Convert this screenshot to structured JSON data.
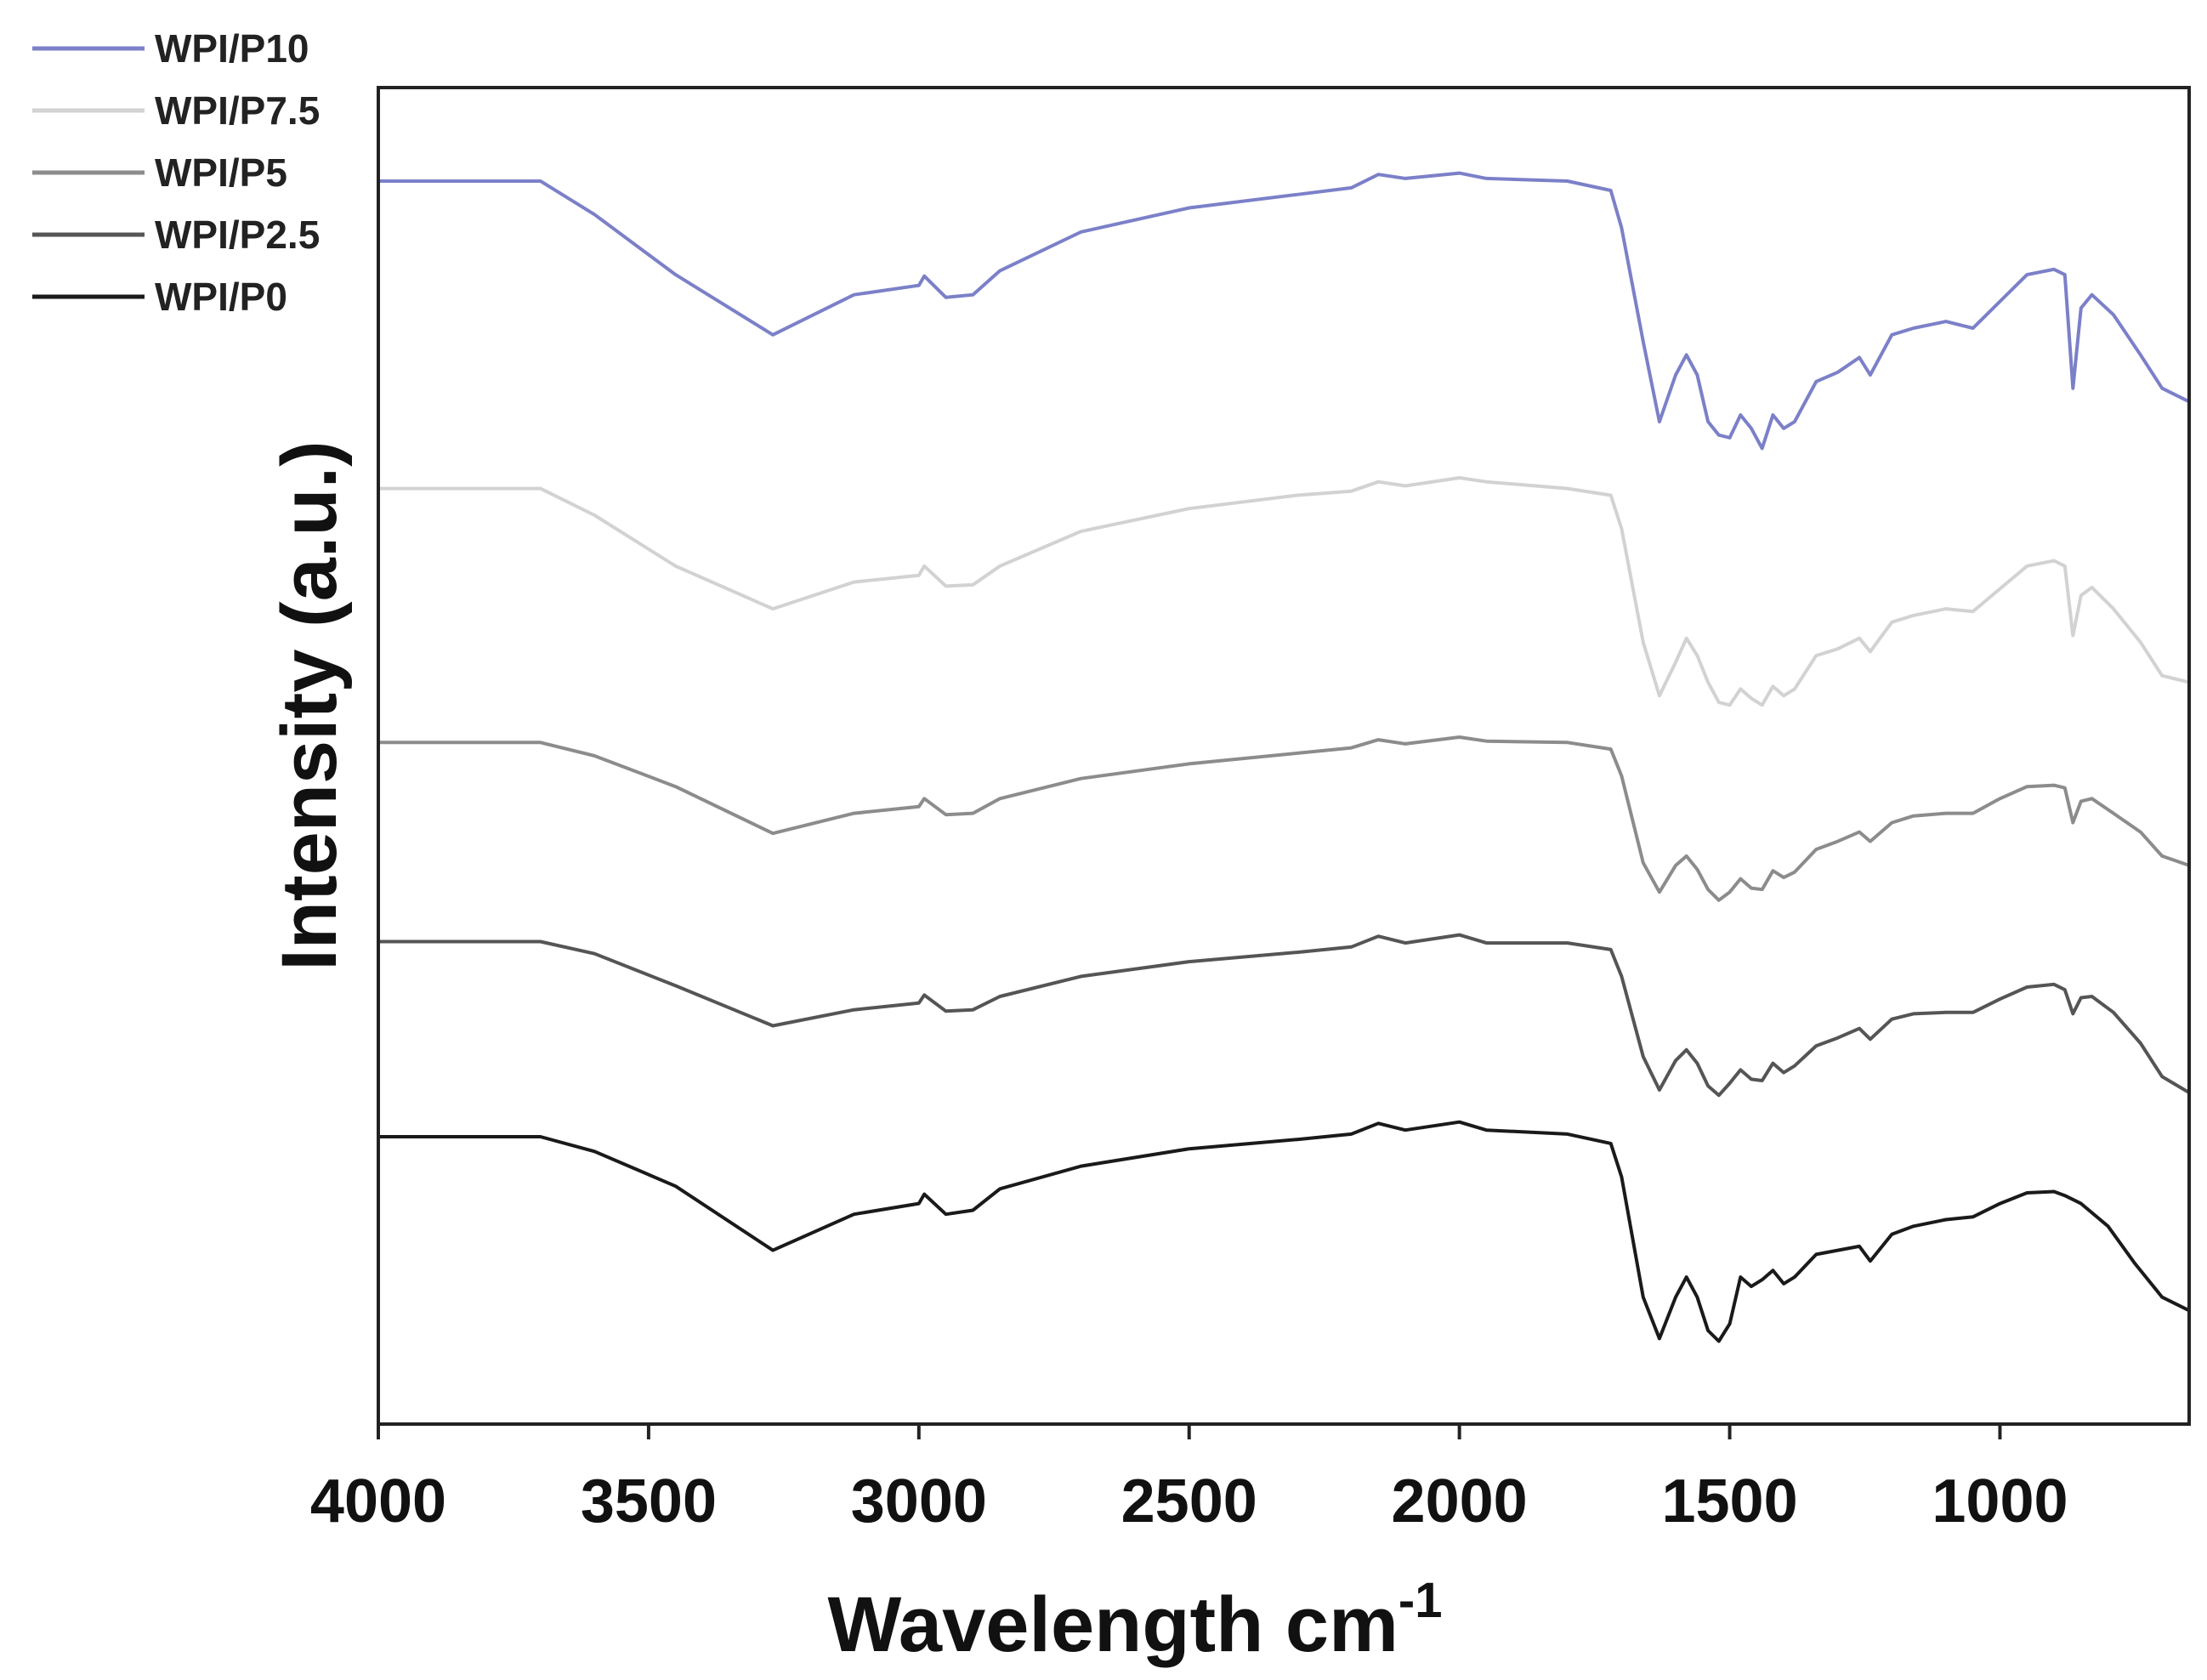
{
  "chart_data": {
    "type": "line",
    "title": "",
    "xlabel": "Wavelength cm",
    "xlabel_superscript": "-1",
    "ylabel": "Intensity (a.u.)",
    "xlim": [
      4000,
      650
    ],
    "x_reversed": true,
    "ylim": [
      0,
      100
    ],
    "grid": false,
    "legend_position": "top-left-outside",
    "xticks": [
      4000,
      3500,
      3000,
      2500,
      2000,
      1500,
      1000
    ],
    "xtick_labels": [
      "4000",
      "3500",
      "3000",
      "2500",
      "2000",
      "1500",
      "1000"
    ],
    "series": [
      {
        "name": "WPI/P10",
        "color": "#7b80c8",
        "points": [
          [
            4000,
            93.0
          ],
          [
            3700,
            93.0
          ],
          [
            3600,
            90.5
          ],
          [
            3450,
            86.0
          ],
          [
            3270,
            81.5
          ],
          [
            3120,
            84.5
          ],
          [
            3000,
            85.2
          ],
          [
            2990,
            85.9
          ],
          [
            2950,
            84.3
          ],
          [
            2900,
            84.5
          ],
          [
            2850,
            86.3
          ],
          [
            2700,
            89.2
          ],
          [
            2500,
            91.0
          ],
          [
            2300,
            92.0
          ],
          [
            2200,
            92.5
          ],
          [
            2150,
            93.5
          ],
          [
            2100,
            93.2
          ],
          [
            2000,
            93.6
          ],
          [
            1950,
            93.2
          ],
          [
            1800,
            93.0
          ],
          [
            1720,
            92.3
          ],
          [
            1700,
            89.5
          ],
          [
            1660,
            81.0
          ],
          [
            1630,
            75.0
          ],
          [
            1600,
            78.5
          ],
          [
            1580,
            80.0
          ],
          [
            1560,
            78.5
          ],
          [
            1540,
            75.0
          ],
          [
            1520,
            74.0
          ],
          [
            1500,
            73.8
          ],
          [
            1480,
            75.5
          ],
          [
            1460,
            74.5
          ],
          [
            1440,
            73.0
          ],
          [
            1420,
            75.5
          ],
          [
            1400,
            74.5
          ],
          [
            1380,
            75.0
          ],
          [
            1340,
            78.0
          ],
          [
            1300,
            78.7
          ],
          [
            1260,
            79.8
          ],
          [
            1240,
            78.5
          ],
          [
            1200,
            81.5
          ],
          [
            1160,
            82.0
          ],
          [
            1100,
            82.5
          ],
          [
            1050,
            82.0
          ],
          [
            1000,
            84.0
          ],
          [
            950,
            86.0
          ],
          [
            900,
            86.4
          ],
          [
            880,
            86.0
          ],
          [
            865,
            77.5
          ],
          [
            850,
            83.5
          ],
          [
            830,
            84.5
          ],
          [
            790,
            83.0
          ],
          [
            740,
            80.0
          ],
          [
            700,
            77.5
          ],
          [
            650,
            76.5
          ]
        ]
      },
      {
        "name": "WPI/P7.5",
        "color": "#d2d2d2",
        "points": [
          [
            4000,
            70.0
          ],
          [
            3700,
            70.0
          ],
          [
            3600,
            68.0
          ],
          [
            3450,
            64.2
          ],
          [
            3270,
            61.0
          ],
          [
            3120,
            63.0
          ],
          [
            3000,
            63.5
          ],
          [
            2990,
            64.2
          ],
          [
            2950,
            62.7
          ],
          [
            2900,
            62.8
          ],
          [
            2850,
            64.2
          ],
          [
            2700,
            66.8
          ],
          [
            2500,
            68.5
          ],
          [
            2300,
            69.5
          ],
          [
            2200,
            69.8
          ],
          [
            2150,
            70.5
          ],
          [
            2100,
            70.2
          ],
          [
            2000,
            70.8
          ],
          [
            1950,
            70.5
          ],
          [
            1800,
            70.0
          ],
          [
            1720,
            69.5
          ],
          [
            1700,
            67.0
          ],
          [
            1660,
            58.5
          ],
          [
            1630,
            54.5
          ],
          [
            1600,
            57.0
          ],
          [
            1580,
            58.8
          ],
          [
            1560,
            57.5
          ],
          [
            1540,
            55.5
          ],
          [
            1520,
            54.0
          ],
          [
            1500,
            53.8
          ],
          [
            1480,
            55.0
          ],
          [
            1460,
            54.3
          ],
          [
            1440,
            53.8
          ],
          [
            1420,
            55.2
          ],
          [
            1400,
            54.5
          ],
          [
            1380,
            55.0
          ],
          [
            1340,
            57.5
          ],
          [
            1300,
            58.0
          ],
          [
            1260,
            58.8
          ],
          [
            1240,
            57.8
          ],
          [
            1200,
            60.0
          ],
          [
            1160,
            60.5
          ],
          [
            1100,
            61.0
          ],
          [
            1050,
            60.8
          ],
          [
            1000,
            62.5
          ],
          [
            950,
            64.2
          ],
          [
            900,
            64.6
          ],
          [
            880,
            64.2
          ],
          [
            865,
            59.0
          ],
          [
            850,
            62.0
          ],
          [
            830,
            62.6
          ],
          [
            790,
            61.0
          ],
          [
            740,
            58.5
          ],
          [
            700,
            56.0
          ],
          [
            650,
            55.5
          ]
        ]
      },
      {
        "name": "WPI/P5",
        "color": "#8c8c8c",
        "points": [
          [
            4000,
            51.0
          ],
          [
            3700,
            51.0
          ],
          [
            3600,
            50.0
          ],
          [
            3450,
            47.7
          ],
          [
            3270,
            44.2
          ],
          [
            3120,
            45.7
          ],
          [
            3000,
            46.2
          ],
          [
            2990,
            46.8
          ],
          [
            2950,
            45.6
          ],
          [
            2900,
            45.7
          ],
          [
            2850,
            46.8
          ],
          [
            2700,
            48.3
          ],
          [
            2500,
            49.4
          ],
          [
            2300,
            50.2
          ],
          [
            2200,
            50.6
          ],
          [
            2150,
            51.2
          ],
          [
            2100,
            50.9
          ],
          [
            2000,
            51.4
          ],
          [
            1950,
            51.1
          ],
          [
            1800,
            51.0
          ],
          [
            1720,
            50.5
          ],
          [
            1700,
            48.5
          ],
          [
            1660,
            42.0
          ],
          [
            1630,
            39.8
          ],
          [
            1600,
            41.8
          ],
          [
            1580,
            42.5
          ],
          [
            1560,
            41.5
          ],
          [
            1540,
            40.0
          ],
          [
            1520,
            39.2
          ],
          [
            1500,
            39.8
          ],
          [
            1480,
            40.8
          ],
          [
            1460,
            40.1
          ],
          [
            1440,
            40.0
          ],
          [
            1420,
            41.4
          ],
          [
            1400,
            40.9
          ],
          [
            1380,
            41.3
          ],
          [
            1340,
            43.0
          ],
          [
            1300,
            43.6
          ],
          [
            1260,
            44.3
          ],
          [
            1240,
            43.6
          ],
          [
            1200,
            45.0
          ],
          [
            1160,
            45.5
          ],
          [
            1100,
            45.7
          ],
          [
            1050,
            45.7
          ],
          [
            1000,
            46.8
          ],
          [
            950,
            47.7
          ],
          [
            900,
            47.8
          ],
          [
            880,
            47.6
          ],
          [
            865,
            45.0
          ],
          [
            850,
            46.6
          ],
          [
            830,
            46.8
          ],
          [
            790,
            45.7
          ],
          [
            740,
            44.3
          ],
          [
            700,
            42.5
          ],
          [
            650,
            41.8
          ]
        ]
      },
      {
        "name": "WPI/P2.5",
        "color": "#555555",
        "points": [
          [
            4000,
            36.1
          ],
          [
            3700,
            36.1
          ],
          [
            3600,
            35.2
          ],
          [
            3450,
            32.8
          ],
          [
            3270,
            29.8
          ],
          [
            3120,
            31.0
          ],
          [
            3000,
            31.5
          ],
          [
            2990,
            32.1
          ],
          [
            2950,
            30.9
          ],
          [
            2900,
            31.0
          ],
          [
            2850,
            32.0
          ],
          [
            2700,
            33.5
          ],
          [
            2500,
            34.6
          ],
          [
            2300,
            35.3
          ],
          [
            2200,
            35.7
          ],
          [
            2150,
            36.5
          ],
          [
            2100,
            36.0
          ],
          [
            2000,
            36.6
          ],
          [
            1950,
            36.0
          ],
          [
            1800,
            36.0
          ],
          [
            1720,
            35.5
          ],
          [
            1700,
            33.5
          ],
          [
            1660,
            27.5
          ],
          [
            1630,
            25.0
          ],
          [
            1600,
            27.2
          ],
          [
            1580,
            28.0
          ],
          [
            1560,
            27.0
          ],
          [
            1540,
            25.3
          ],
          [
            1520,
            24.6
          ],
          [
            1500,
            25.5
          ],
          [
            1480,
            26.5
          ],
          [
            1460,
            25.8
          ],
          [
            1440,
            25.7
          ],
          [
            1420,
            27.0
          ],
          [
            1400,
            26.3
          ],
          [
            1380,
            26.8
          ],
          [
            1340,
            28.3
          ],
          [
            1300,
            28.9
          ],
          [
            1260,
            29.6
          ],
          [
            1240,
            28.8
          ],
          [
            1200,
            30.3
          ],
          [
            1160,
            30.7
          ],
          [
            1100,
            30.8
          ],
          [
            1050,
            30.8
          ],
          [
            1000,
            31.8
          ],
          [
            950,
            32.7
          ],
          [
            900,
            32.9
          ],
          [
            880,
            32.5
          ],
          [
            865,
            30.7
          ],
          [
            850,
            31.9
          ],
          [
            830,
            32.0
          ],
          [
            790,
            30.8
          ],
          [
            740,
            28.5
          ],
          [
            700,
            26.0
          ],
          [
            650,
            24.8
          ]
        ]
      },
      {
        "name": "WPI/P0",
        "color": "#1a1a1a",
        "points": [
          [
            4000,
            21.5
          ],
          [
            3700,
            21.5
          ],
          [
            3600,
            20.4
          ],
          [
            3450,
            17.8
          ],
          [
            3270,
            13.0
          ],
          [
            3120,
            15.7
          ],
          [
            3000,
            16.5
          ],
          [
            2990,
            17.2
          ],
          [
            2950,
            15.7
          ],
          [
            2900,
            16.0
          ],
          [
            2850,
            17.6
          ],
          [
            2700,
            19.3
          ],
          [
            2500,
            20.6
          ],
          [
            2300,
            21.3
          ],
          [
            2200,
            21.7
          ],
          [
            2150,
            22.5
          ],
          [
            2100,
            22.0
          ],
          [
            2000,
            22.6
          ],
          [
            1950,
            22.0
          ],
          [
            1800,
            21.7
          ],
          [
            1720,
            21.0
          ],
          [
            1700,
            18.5
          ],
          [
            1660,
            9.5
          ],
          [
            1630,
            6.4
          ],
          [
            1600,
            9.5
          ],
          [
            1580,
            11.0
          ],
          [
            1560,
            9.5
          ],
          [
            1540,
            7.0
          ],
          [
            1520,
            6.2
          ],
          [
            1500,
            7.5
          ],
          [
            1480,
            11.0
          ],
          [
            1460,
            10.3
          ],
          [
            1440,
            10.8
          ],
          [
            1420,
            11.5
          ],
          [
            1400,
            10.5
          ],
          [
            1380,
            11.0
          ],
          [
            1340,
            12.7
          ],
          [
            1300,
            13.0
          ],
          [
            1260,
            13.3
          ],
          [
            1240,
            12.2
          ],
          [
            1200,
            14.2
          ],
          [
            1160,
            14.8
          ],
          [
            1100,
            15.3
          ],
          [
            1050,
            15.5
          ],
          [
            1000,
            16.5
          ],
          [
            950,
            17.3
          ],
          [
            900,
            17.4
          ],
          [
            880,
            17.1
          ],
          [
            850,
            16.5
          ],
          [
            800,
            14.8
          ],
          [
            750,
            12.0
          ],
          [
            700,
            9.5
          ],
          [
            650,
            8.5
          ]
        ]
      }
    ]
  }
}
